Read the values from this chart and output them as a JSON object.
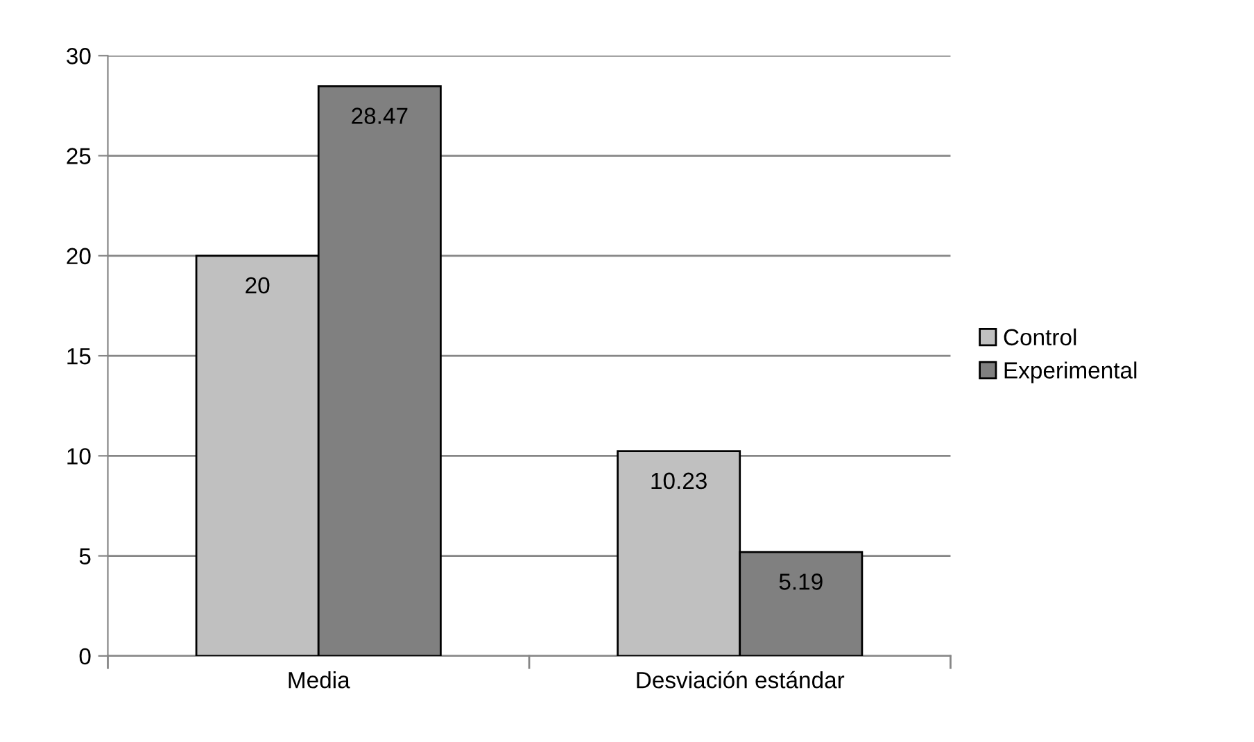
{
  "chart_data": {
    "type": "bar",
    "categories": [
      "Media",
      "Desviación estándar"
    ],
    "series": [
      {
        "name": "Control",
        "color": "#c0c0c0",
        "values": [
          20,
          10.23
        ]
      },
      {
        "name": "Experimental",
        "color": "#808080",
        "values": [
          28.47,
          5.19
        ]
      }
    ],
    "ylim": [
      0,
      30
    ],
    "yticks": [
      0,
      5,
      10,
      15,
      20,
      25,
      30
    ],
    "grid": "y",
    "legend": "right",
    "data_labels": true
  }
}
